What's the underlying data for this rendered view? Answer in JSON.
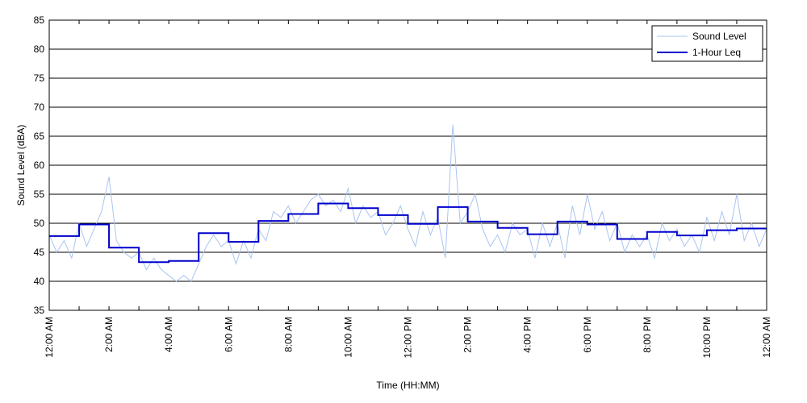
{
  "chart_data": {
    "type": "line",
    "xlabel": "Time (HH:MM)",
    "ylabel": "Sound Level (dBA)",
    "ylim": [
      35,
      85
    ],
    "xlim": [
      0,
      24
    ],
    "y_ticks": [
      "35",
      "40",
      "45",
      "50",
      "55",
      "60",
      "65",
      "70",
      "75",
      "80",
      "85"
    ],
    "x_tick_labels": [
      "12:00 AM",
      "2:00 AM",
      "4:00 AM",
      "6:00 AM",
      "8:00 AM",
      "10:00 AM",
      "12:00 PM",
      "2:00 PM",
      "4:00 PM",
      "6:00 PM",
      "8:00 PM",
      "10:00 PM",
      "12:00 AM"
    ],
    "grid": "horizontal",
    "legend_position": "top-right",
    "series": [
      {
        "name": "Sound Level",
        "color": "#a9c4f0",
        "x": [
          0,
          0.25,
          0.5,
          0.75,
          1,
          1.25,
          1.5,
          1.75,
          2,
          2.25,
          2.5,
          2.75,
          3,
          3.25,
          3.5,
          3.75,
          4,
          4.25,
          4.5,
          4.75,
          5,
          5.25,
          5.5,
          5.75,
          6,
          6.25,
          6.5,
          6.75,
          7,
          7.25,
          7.5,
          7.75,
          8,
          8.25,
          8.5,
          8.75,
          9,
          9.25,
          9.5,
          9.75,
          10,
          10.25,
          10.5,
          10.75,
          11,
          11.25,
          11.5,
          11.75,
          12,
          12.25,
          12.5,
          12.75,
          13,
          13.25,
          13.5,
          13.75,
          14,
          14.25,
          14.5,
          14.75,
          15,
          15.25,
          15.5,
          15.75,
          16,
          16.25,
          16.5,
          16.75,
          17,
          17.25,
          17.5,
          17.75,
          18,
          18.25,
          18.5,
          18.75,
          19,
          19.25,
          19.5,
          19.75,
          20,
          20.25,
          20.5,
          20.75,
          21,
          21.25,
          21.5,
          21.75,
          22,
          22.25,
          22.5,
          22.75,
          23,
          23.25,
          23.5,
          23.75,
          24
        ],
        "values": [
          48,
          45,
          47,
          44,
          50,
          46,
          49,
          52,
          58,
          47,
          45,
          44,
          45,
          42,
          44,
          42,
          41,
          40,
          41,
          40,
          43,
          46,
          48,
          46,
          47,
          43,
          47,
          44,
          49,
          47,
          52,
          51,
          53,
          50,
          52,
          54,
          55,
          53,
          54,
          52,
          56,
          50,
          53,
          51,
          52,
          48,
          50,
          53,
          49,
          46,
          52,
          48,
          51,
          44,
          67,
          50,
          52,
          55,
          49,
          46,
          48,
          45,
          50,
          48,
          49,
          44,
          50,
          46,
          50,
          44,
          53,
          48,
          55,
          49,
          52,
          47,
          50,
          45,
          48,
          46,
          48,
          44,
          50,
          47,
          49,
          46,
          48,
          45,
          51,
          47,
          52,
          48,
          55,
          47,
          50,
          46,
          49
        ]
      },
      {
        "name": "1-Hour Leq",
        "color": "#0000cc",
        "x": [
          0,
          1,
          2,
          3,
          4,
          5,
          6,
          7,
          8,
          9,
          10,
          11,
          12,
          13,
          14,
          15,
          16,
          17,
          18,
          19,
          20,
          21,
          22,
          23
        ],
        "values": [
          47.8,
          49.8,
          45.8,
          43.3,
          43.5,
          48.3,
          46.8,
          50.4,
          51.6,
          53.4,
          52.6,
          51.4,
          49.9,
          52.8,
          50.3,
          49.2,
          48.1,
          50.3,
          49.8,
          47.3,
          48.5,
          47.9,
          48.8,
          49.1
        ]
      }
    ]
  }
}
